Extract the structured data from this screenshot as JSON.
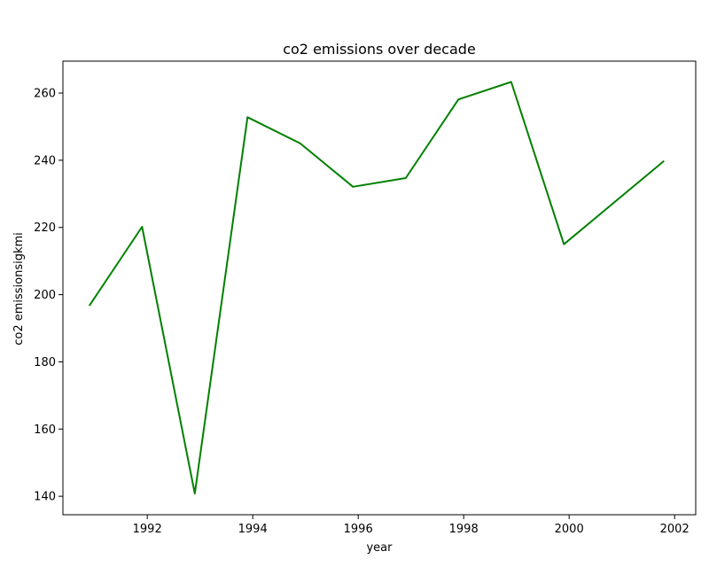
{
  "chart_data": {
    "type": "line",
    "title": "co2 emissions over decade",
    "xlabel": "year",
    "ylabel": "co2 emissionsigkmi",
    "xlim": [
      1990.4,
      2002.4
    ],
    "ylim": [
      134.5,
      269.5
    ],
    "xticks": [
      1992,
      1994,
      1996,
      1998,
      2000,
      2002
    ],
    "yticks": [
      140,
      160,
      180,
      200,
      220,
      240,
      260
    ],
    "grid": false,
    "legend": "none",
    "series": [
      {
        "color": "#008000",
        "x": [
          1990.9,
          1991.9,
          1992.9,
          1993.9,
          1994.9,
          1995.9,
          1996.9,
          1997.9,
          1998.9,
          1999.9,
          2001.8
        ],
        "y": [
          196.7,
          220.2,
          140.8,
          252.8,
          245.0,
          232.1,
          234.7,
          258.1,
          263.3,
          215.0,
          239.8
        ]
      }
    ]
  }
}
